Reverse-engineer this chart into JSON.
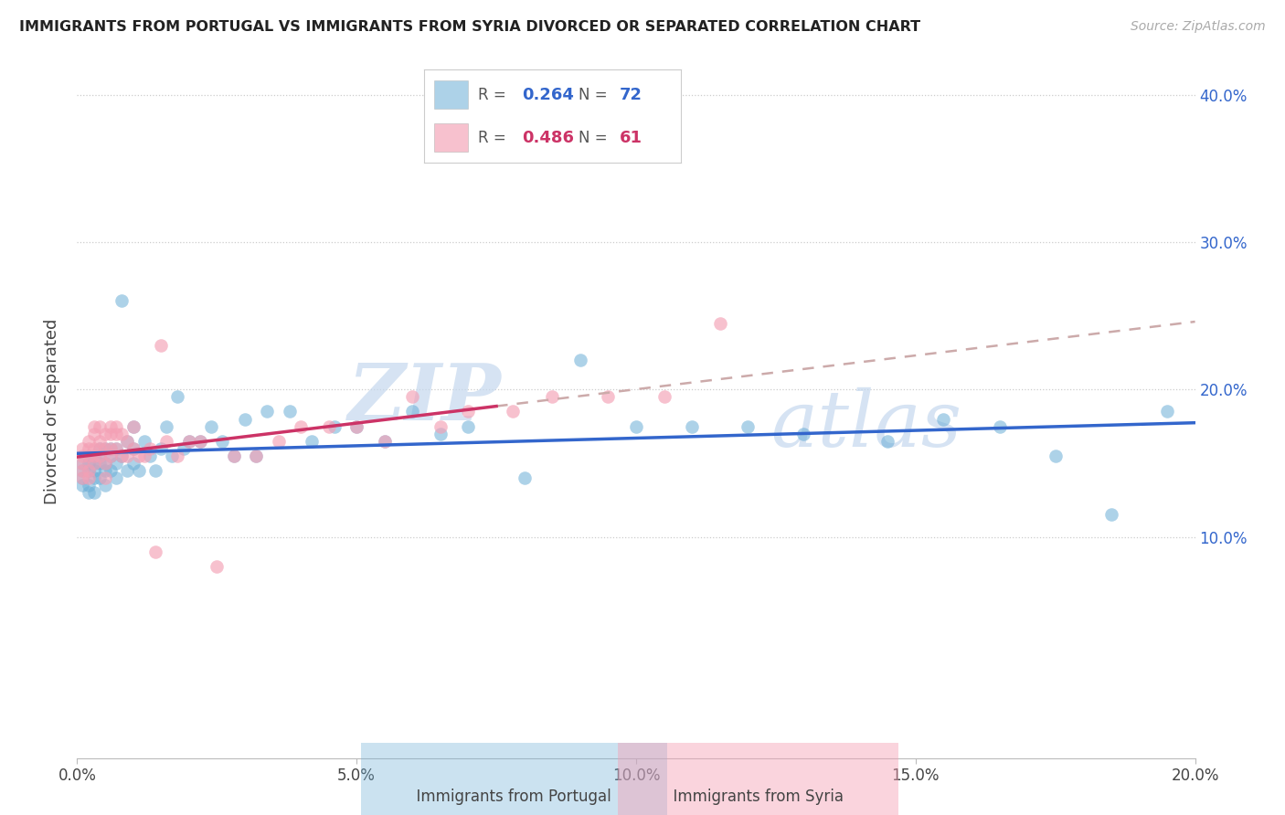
{
  "title": "IMMIGRANTS FROM PORTUGAL VS IMMIGRANTS FROM SYRIA DIVORCED OR SEPARATED CORRELATION CHART",
  "source": "Source: ZipAtlas.com",
  "ylabel_label": "Divorced or Separated",
  "xlabel_label_portugal": "Immigrants from Portugal",
  "xlabel_label_syria": "Immigrants from Syria",
  "xlim": [
    0.0,
    0.2
  ],
  "ylim": [
    -0.05,
    0.42
  ],
  "yticks": [
    0.1,
    0.2,
    0.3,
    0.4
  ],
  "xticks": [
    0.0,
    0.05,
    0.1,
    0.15,
    0.2
  ],
  "legend_portugal_R": "0.264",
  "legend_portugal_N": "72",
  "legend_syria_R": "0.486",
  "legend_syria_N": "61",
  "color_portugal": "#6baed6",
  "color_syria": "#f4a0b5",
  "trendline_portugal": "#3366cc",
  "trendline_syria": "#cc3366",
  "trendline_dashed_color": "#ccaaaa",
  "watermark_zip": "ZIP",
  "watermark_atlas": "atlas",
  "portugal_x": [
    0.001,
    0.001,
    0.001,
    0.001,
    0.002,
    0.002,
    0.002,
    0.002,
    0.002,
    0.003,
    0.003,
    0.003,
    0.003,
    0.003,
    0.004,
    0.004,
    0.004,
    0.004,
    0.005,
    0.005,
    0.005,
    0.005,
    0.006,
    0.006,
    0.006,
    0.007,
    0.007,
    0.007,
    0.008,
    0.008,
    0.009,
    0.009,
    0.01,
    0.01,
    0.01,
    0.011,
    0.012,
    0.013,
    0.014,
    0.015,
    0.016,
    0.017,
    0.018,
    0.019,
    0.02,
    0.022,
    0.024,
    0.026,
    0.028,
    0.03,
    0.032,
    0.034,
    0.038,
    0.042,
    0.046,
    0.05,
    0.055,
    0.06,
    0.065,
    0.07,
    0.08,
    0.09,
    0.1,
    0.11,
    0.12,
    0.13,
    0.145,
    0.155,
    0.165,
    0.175,
    0.185,
    0.195
  ],
  "portugal_y": [
    0.135,
    0.14,
    0.145,
    0.15,
    0.13,
    0.135,
    0.145,
    0.15,
    0.155,
    0.13,
    0.14,
    0.145,
    0.15,
    0.155,
    0.14,
    0.15,
    0.155,
    0.16,
    0.135,
    0.145,
    0.15,
    0.16,
    0.145,
    0.155,
    0.16,
    0.14,
    0.15,
    0.16,
    0.155,
    0.26,
    0.145,
    0.165,
    0.15,
    0.16,
    0.175,
    0.145,
    0.165,
    0.155,
    0.145,
    0.16,
    0.175,
    0.155,
    0.195,
    0.16,
    0.165,
    0.165,
    0.175,
    0.165,
    0.155,
    0.18,
    0.155,
    0.185,
    0.185,
    0.165,
    0.175,
    0.175,
    0.165,
    0.185,
    0.17,
    0.175,
    0.14,
    0.22,
    0.175,
    0.175,
    0.175,
    0.17,
    0.165,
    0.18,
    0.175,
    0.155,
    0.115,
    0.185
  ],
  "syria_x": [
    0.001,
    0.001,
    0.001,
    0.001,
    0.001,
    0.002,
    0.002,
    0.002,
    0.002,
    0.002,
    0.003,
    0.003,
    0.003,
    0.003,
    0.003,
    0.004,
    0.004,
    0.004,
    0.004,
    0.005,
    0.005,
    0.005,
    0.005,
    0.006,
    0.006,
    0.006,
    0.006,
    0.007,
    0.007,
    0.007,
    0.008,
    0.008,
    0.009,
    0.009,
    0.01,
    0.01,
    0.011,
    0.012,
    0.013,
    0.014,
    0.015,
    0.016,
    0.018,
    0.02,
    0.022,
    0.025,
    0.028,
    0.032,
    0.036,
    0.04,
    0.045,
    0.05,
    0.055,
    0.06,
    0.065,
    0.07,
    0.078,
    0.085,
    0.095,
    0.105,
    0.115
  ],
  "syria_y": [
    0.14,
    0.145,
    0.15,
    0.155,
    0.16,
    0.14,
    0.145,
    0.155,
    0.16,
    0.165,
    0.15,
    0.155,
    0.16,
    0.17,
    0.175,
    0.155,
    0.16,
    0.165,
    0.175,
    0.14,
    0.15,
    0.16,
    0.17,
    0.155,
    0.16,
    0.17,
    0.175,
    0.16,
    0.17,
    0.175,
    0.155,
    0.17,
    0.155,
    0.165,
    0.16,
    0.175,
    0.155,
    0.155,
    0.16,
    0.09,
    0.23,
    0.165,
    0.155,
    0.165,
    0.165,
    0.08,
    0.155,
    0.155,
    0.165,
    0.175,
    0.175,
    0.175,
    0.165,
    0.195,
    0.175,
    0.185,
    0.185,
    0.195,
    0.195,
    0.195,
    0.245
  ]
}
